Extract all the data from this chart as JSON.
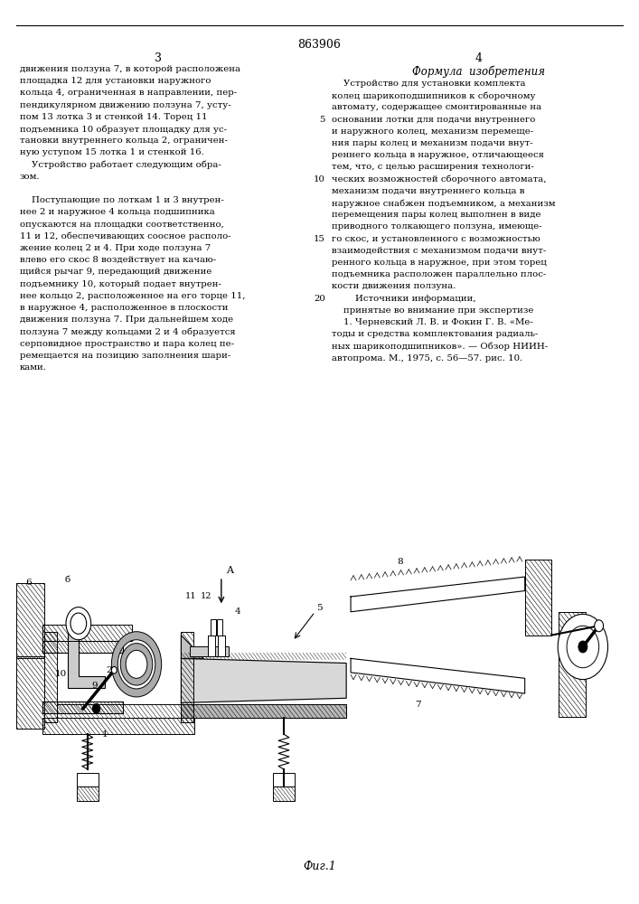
{
  "page_number": "863906",
  "col_left_number": "3",
  "col_right_number": "4",
  "background_color": "#ffffff",
  "text_color": "#000000",
  "formula_title": "Формула  изобретения",
  "left_col_text": [
    "движения ползуна 7, в которой расположена",
    "площадка 12 для установки наружного",
    "кольца 4, ограниченная в направлении, пер-",
    "пендикулярном движению ползуна 7, усту-",
    "пом 13 лотка 3 и стенкой 14. Торец 11",
    "подъемника 10 образует площадку для ус-",
    "тановки внутреннего кольца 2, ограничен-",
    "ную уступом 15 лотка 1 и стенкой 16.",
    "    Устройство работает следующим обра-",
    "зом.",
    "",
    "    Поступающие по лоткам 1 и 3 внутрен-",
    "нее 2 и наружное 4 кольца подшипника",
    "опускаются на площадки соответственно,",
    "11 и 12, обеспечивающих соосное располо-",
    "жение колец 2 и 4. При ходе ползуна 7",
    "влево его скос 8 воздействует на качаю-",
    "щийся рычаг 9, передающий движение",
    "подъемнику 10, который подает внутрен-",
    "нее кольцо 2, расположенное на его торце 11,",
    "в наружное 4, расположенное в плоскости",
    "движения ползуна 7. При дальнейшем ходе",
    "ползуна 7 между кольцами 2 и 4 образуется",
    "серповидное пространство и пара колец пе-",
    "ремещается на позицию заполнения шари-",
    "ками."
  ],
  "right_col_text": [
    "    Устройство для установки комплекта",
    "колец шарикоподшипников к сборочному",
    "автомату, содержащее смонтированные на",
    "основании лотки для подачи внутреннего",
    "и наружного колец, механизм перемеще-",
    "ния пары колец и механизм подачи внут-",
    "реннего кольца в наружное, отличающееся",
    "тем, что, с целью расширения технологи-",
    "ческих возможностей сборочного автомата,",
    "механизм подачи внутреннего кольца в",
    "наружное снабжен подъемником, а механизм",
    "перемещения пары колец выполнен в виде",
    "приводного толкающего ползуна, имеюще-",
    "го скос, и установленного с возможностью",
    "взаимодействия с механизмом подачи внут-",
    "ренного кольца в наружное, при этом торец",
    "подъемника расположен параллельно плос-",
    "кости движения ползуна.",
    "        Источники информации,",
    "    принятые во внимание при экспертизе",
    "    1. Черневский Л. В. и Фокин Г. В. «Ме-",
    "тоды и средства комплектования радиаль-",
    "ных шарикоподшипников». — Обзор НИИН-",
    "автопрома. М., 1975, с. 56—57. рис. 10."
  ],
  "line_numbers": {
    "3": "5",
    "8": "10",
    "13": "15",
    "18": "20"
  },
  "fig_label": "Фиг.1"
}
